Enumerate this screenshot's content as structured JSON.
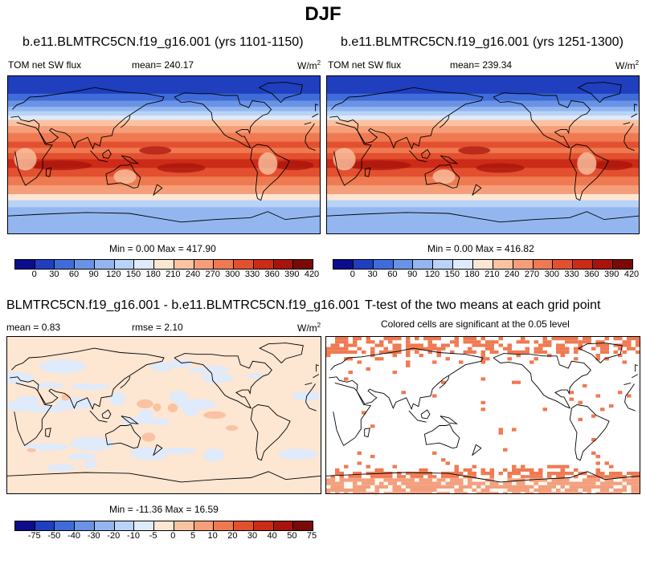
{
  "figure": {
    "title": "DJF"
  },
  "panels": {
    "p1": {
      "title": "b.e11.BLMTRC5CN.f19_g16.001 (yrs 1101-1150)",
      "left": "TOM net SW flux",
      "center": "mean= 240.17",
      "units": "W/m",
      "units_sup": "2",
      "minmax": "Min =   0.00 Max = 417.90"
    },
    "p2": {
      "title": "b.e11.BLMTRC5CN.f19_g16.001 (yrs 1251-1300)",
      "left": "TOM net SW flux",
      "center": "mean= 239.34",
      "units": "W/m",
      "units_sup": "2",
      "minmax": "Min =   0.00 Max = 416.82"
    },
    "p3": {
      "title": "BLMTRC5CN.f19_g16.001 - b.e11.BLMTRC5CN.f19_g16.001",
      "left": "mean =   0.83",
      "center": "rmse =   2.10",
      "units": "W/m",
      "units_sup": "2",
      "minmax": "Min = -11.36 Max =  16.59"
    },
    "p4": {
      "title": "T-test of the two means at each grid point",
      "subtitle": "Colored cells are significant at the 0.05 level"
    }
  },
  "colorbars": {
    "abs": {
      "colors": [
        "#0c0c8c",
        "#1f3fbf",
        "#3f6cd8",
        "#6a93e6",
        "#93b6f0",
        "#b9d3f7",
        "#dfeafb",
        "#fde6d2",
        "#f9c3a2",
        "#f59f7a",
        "#ef7a52",
        "#e3502f",
        "#cc2b17",
        "#a8140d",
        "#7a0a08"
      ],
      "labels": [
        "0",
        "30",
        "60",
        "90",
        "120",
        "150",
        "180",
        "210",
        "240",
        "270",
        "300",
        "330",
        "360",
        "390",
        "420"
      ]
    },
    "diff": {
      "colors": [
        "#0c0c8c",
        "#1f3fbf",
        "#3f6cd8",
        "#6a93e6",
        "#93b6f0",
        "#b9d3f7",
        "#dfeafb",
        "#fde6d2",
        "#f9c3a2",
        "#f59f7a",
        "#ef7a52",
        "#e3502f",
        "#cc2b17",
        "#a8140d",
        "#7a0a08"
      ],
      "labels": [
        "-75",
        "-50",
        "-40",
        "-30",
        "-20",
        "-10",
        "-5",
        "0",
        "5",
        "10",
        "20",
        "30",
        "40",
        "50",
        "75"
      ]
    }
  },
  "chart_data": [
    {
      "type": "heatmap",
      "title": "b.e11.BLMTRC5CN.f19_g16.001 (yrs 1101-1150)",
      "variable": "TOM net SW flux",
      "units": "W/m2",
      "mean": 240.17,
      "min": 0.0,
      "max": 417.9,
      "colorbar_levels": [
        0,
        30,
        60,
        90,
        120,
        150,
        180,
        210,
        240,
        270,
        300,
        330,
        360,
        390,
        420
      ]
    },
    {
      "type": "heatmap",
      "title": "b.e11.BLMTRC5CN.f19_g16.001 (yrs 1251-1300)",
      "variable": "TOM net SW flux",
      "units": "W/m2",
      "mean": 239.34,
      "min": 0.0,
      "max": 416.82,
      "colorbar_levels": [
        0,
        30,
        60,
        90,
        120,
        150,
        180,
        210,
        240,
        270,
        300,
        330,
        360,
        390,
        420
      ]
    },
    {
      "type": "heatmap",
      "title": "BLMTRC5CN.f19_g16.001 - b.e11.BLMTRC5CN.f19_g16.001",
      "units": "W/m2",
      "mean": 0.83,
      "rmse": 2.1,
      "min": -11.36,
      "max": 16.59,
      "colorbar_levels": [
        -75,
        -50,
        -40,
        -30,
        -20,
        -10,
        -5,
        0,
        5,
        10,
        20,
        30,
        40,
        50,
        75
      ]
    },
    {
      "type": "heatmap",
      "title": "T-test of the two means at each grid point",
      "note": "Colored cells are significant at the 0.05 level",
      "significance_level": 0.05
    }
  ]
}
